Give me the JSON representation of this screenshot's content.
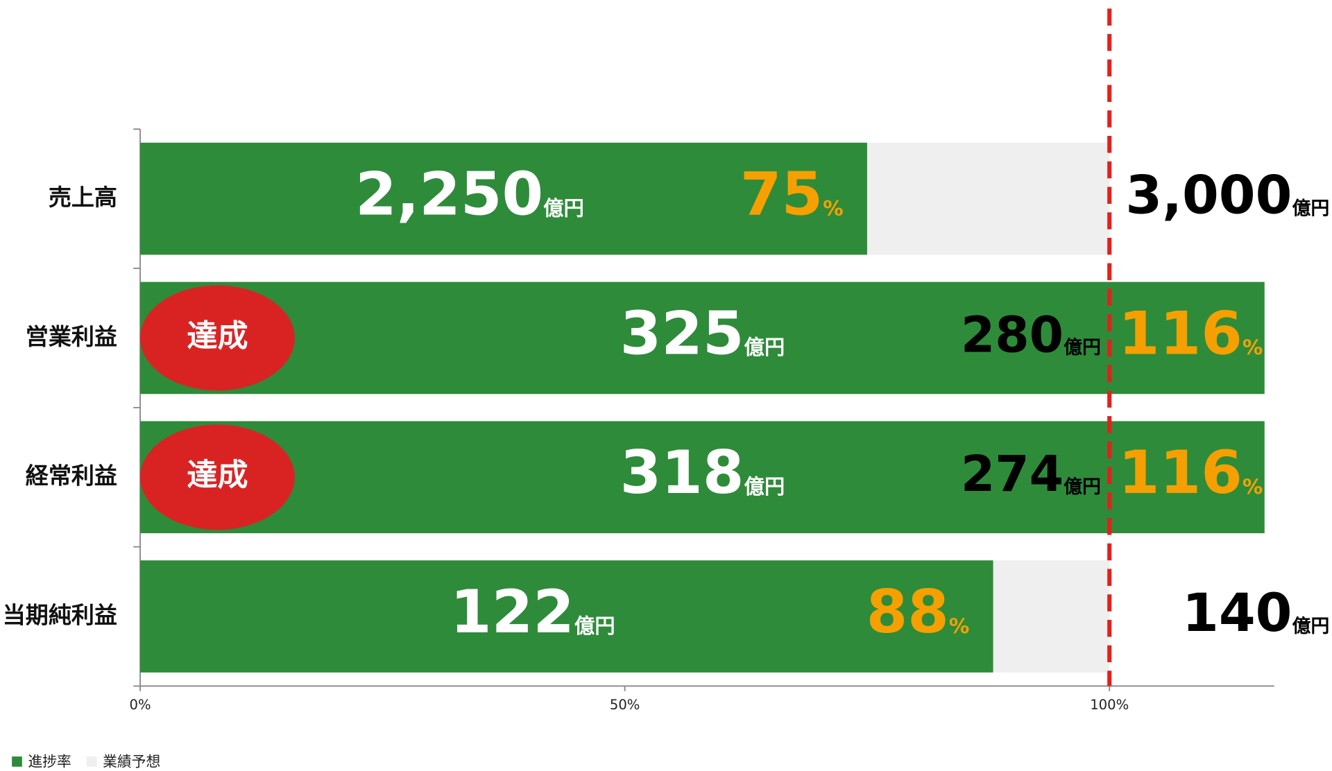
{
  "chart_data": {
    "type": "bar",
    "orientation": "horizontal",
    "categories": [
      "売上高",
      "営業利益",
      "経常利益",
      "当期純利益"
    ],
    "series": [
      {
        "name": "進捗率",
        "color": "#2e8b3a",
        "values": [
          75,
          116,
          116,
          88
        ]
      },
      {
        "name": "業績予想",
        "color": "#efefef",
        "values": [
          100,
          100,
          100,
          100
        ]
      }
    ],
    "actual_labels": [
      "2,250",
      "325",
      "318",
      "122"
    ],
    "forecast_labels": [
      "3,000",
      "280",
      "274",
      "140"
    ],
    "amount_unit": "億円",
    "percent_unit": "%",
    "percent_color": "#f5a000",
    "badges": [
      null,
      "達成",
      "達成",
      null
    ],
    "badge_color": "#d92323",
    "reference_line": {
      "value": 100,
      "color": "#e3201b",
      "dashed": true
    },
    "xlim": [
      0,
      117
    ],
    "xticks": [
      {
        "value": 0,
        "label": "0%"
      },
      {
        "value": 50,
        "label": "50%"
      },
      {
        "value": 100,
        "label": "100%"
      }
    ],
    "legend": "bottom-left"
  }
}
